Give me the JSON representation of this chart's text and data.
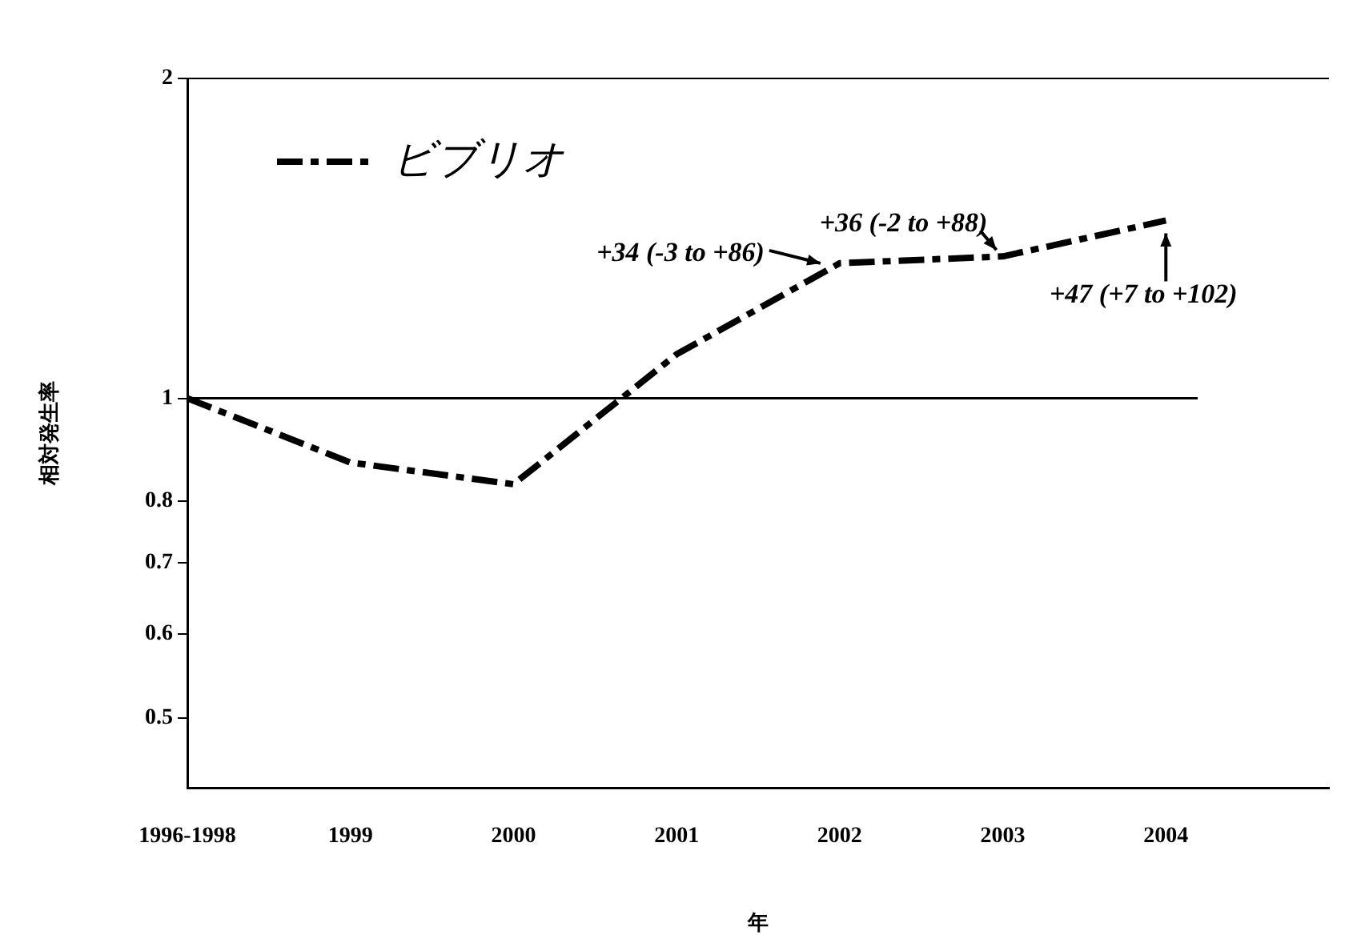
{
  "chart_data": {
    "type": "line",
    "xlabel": "年",
    "ylabel": "相対発生率",
    "categories": [
      "1996-1998",
      "1999",
      "2000",
      "2001",
      "2002",
      "2003",
      "2004",
      null
    ],
    "series": [
      {
        "name": "ビブリオ",
        "color": "#000000",
        "values": [
          1,
          0.87,
          0.83,
          1.1,
          1.34,
          1.36,
          1.47,
          null
        ]
      }
    ],
    "log": "y",
    "ylim": [
      0.43,
      2
    ],
    "yticks": [
      0.5,
      0.6,
      0.7,
      0.8,
      1,
      2
    ],
    "ref_lines": [
      {
        "axis": "y",
        "value": 1,
        "color": "#000000",
        "line_style": "solid"
      }
    ],
    "annotations": [
      {
        "text": "+34 (-3 to +86)",
        "x": "2002",
        "y": 1.34
      },
      {
        "text": "+36 (-2 to +88)",
        "x": "2003",
        "y": 1.36
      },
      {
        "text": "+47 (+7 to +102)",
        "x": "2004",
        "y": 1.47
      }
    ],
    "legend": "top left",
    "line_style": "dashed",
    "marker": "none",
    "grid": false
  }
}
